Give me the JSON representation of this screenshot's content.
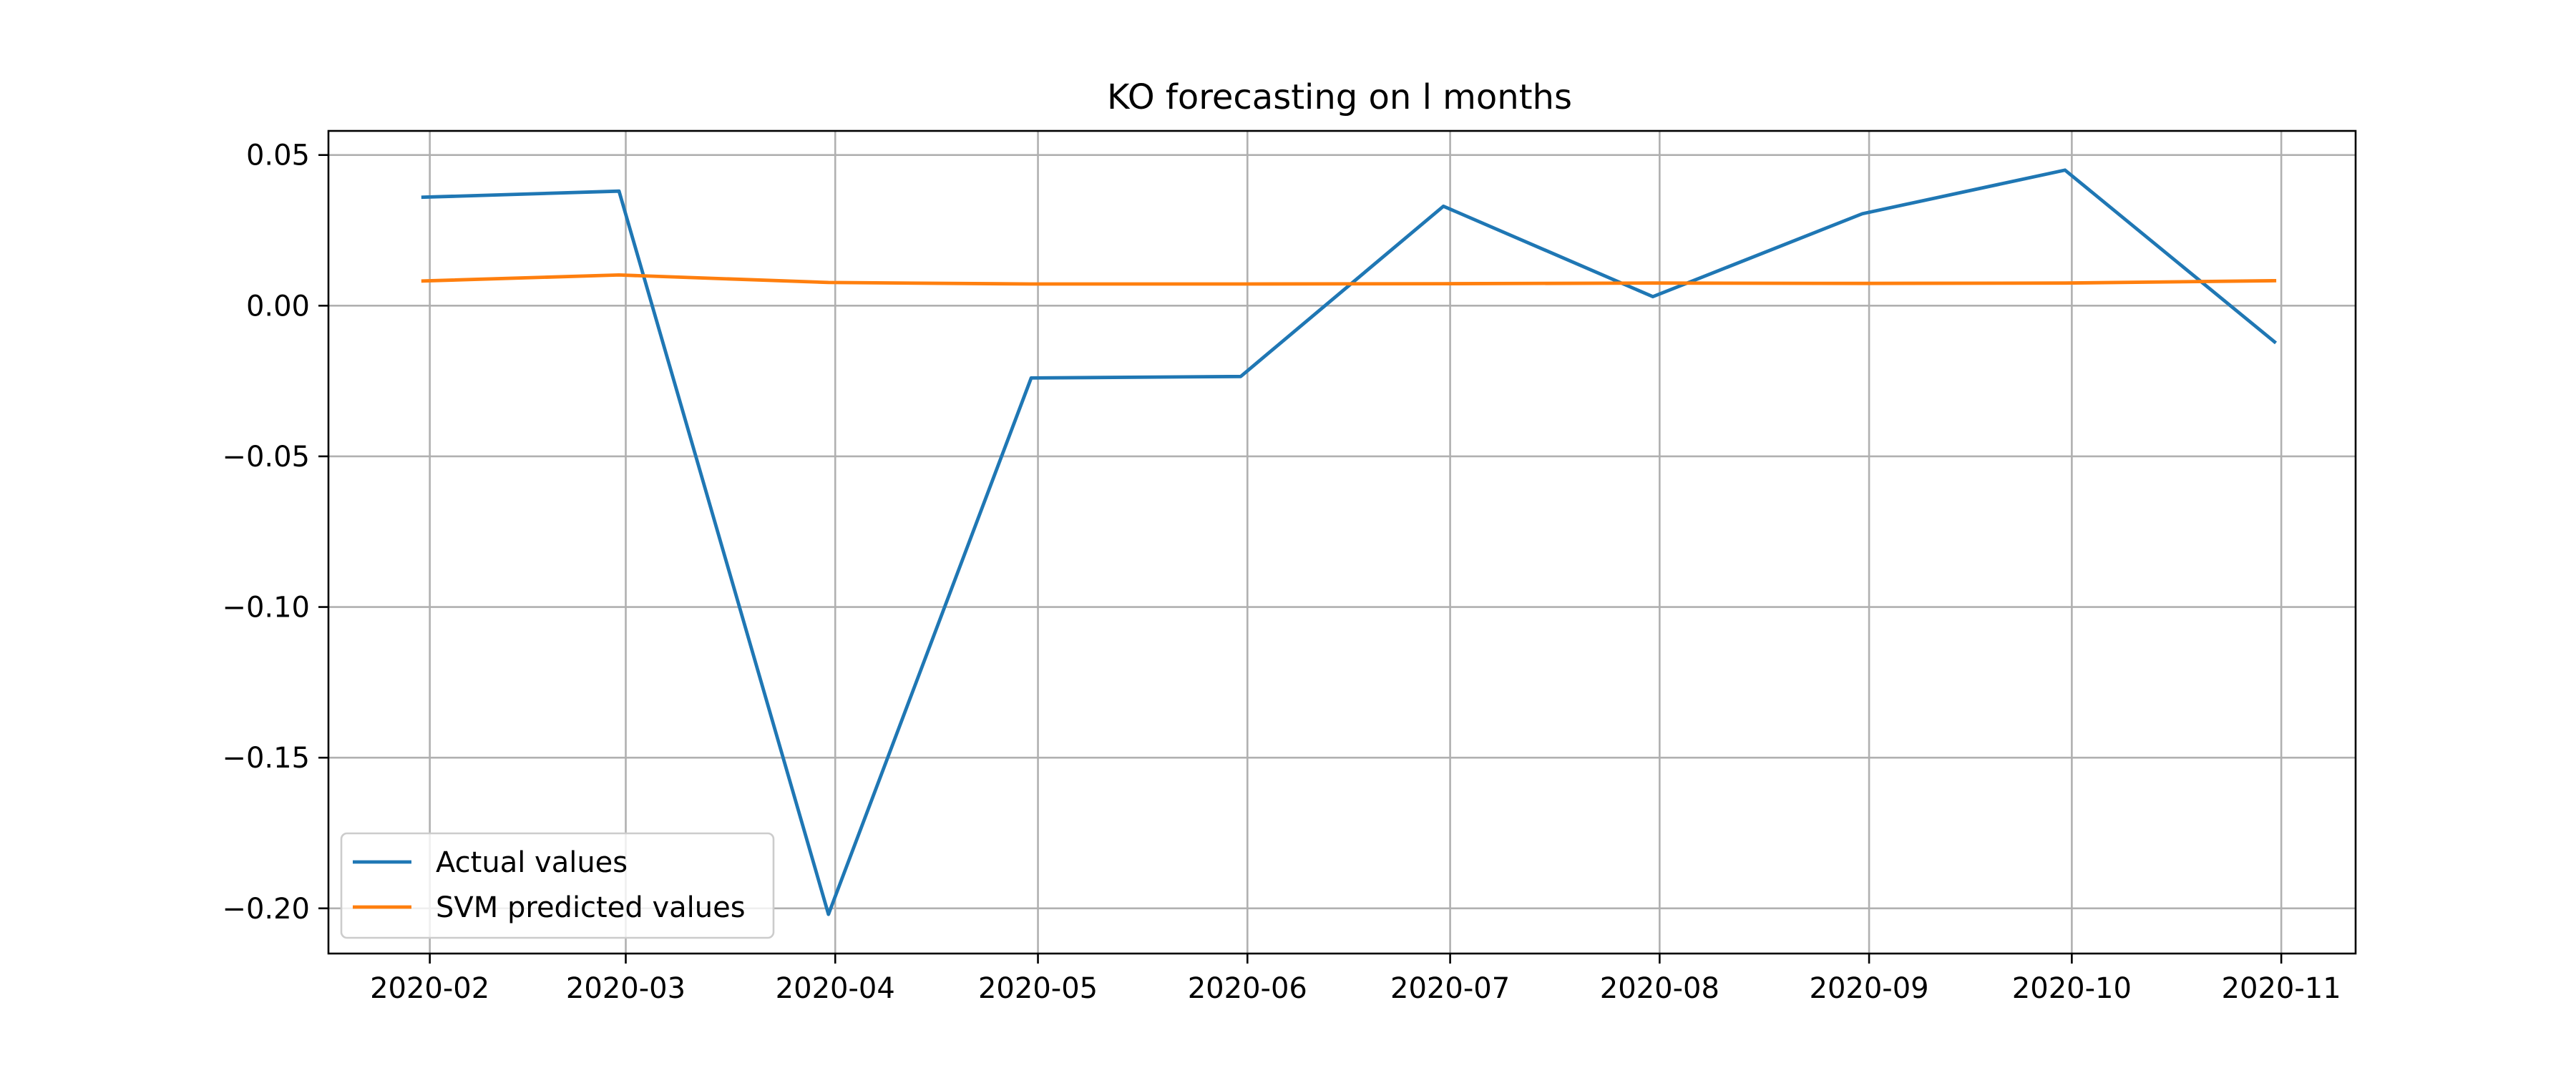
{
  "chart_data": {
    "type": "line",
    "title": "KO forecasting on l months",
    "xlabel": "",
    "ylabel": "",
    "x": [
      "2020-01-31",
      "2020-02-29",
      "2020-03-31",
      "2020-04-30",
      "2020-05-31",
      "2020-06-30",
      "2020-07-31",
      "2020-08-31",
      "2020-09-30",
      "2020-10-31"
    ],
    "x_ticks": [
      "2020-02-01",
      "2020-03-01",
      "2020-04-01",
      "2020-05-01",
      "2020-06-01",
      "2020-07-01",
      "2020-08-01",
      "2020-09-01",
      "2020-10-01",
      "2020-11-01"
    ],
    "x_tick_labels": [
      "2020-02",
      "2020-03",
      "2020-04",
      "2020-05",
      "2020-06",
      "2020-07",
      "2020-08",
      "2020-09",
      "2020-10",
      "2020-11"
    ],
    "xlim": [
      "2020-01-17",
      "2020-11-12"
    ],
    "ylim": [
      -0.215,
      0.058
    ],
    "y_ticks": [
      0.05,
      0.0,
      -0.05,
      -0.1,
      -0.15,
      -0.2
    ],
    "y_tick_labels": [
      "0.05",
      "0.00",
      "−0.05",
      "−0.10",
      "−0.15",
      "−0.20"
    ],
    "grid": true,
    "legend_position": "lower-left",
    "series": [
      {
        "name": "Actual values",
        "color": "#1f77b4",
        "values": [
          0.036,
          0.038,
          -0.202,
          -0.024,
          -0.0235,
          0.033,
          0.003,
          0.0305,
          0.045,
          -0.012
        ]
      },
      {
        "name": "SVM predicted values",
        "color": "#ff7f0e",
        "values": [
          0.0082,
          0.0102,
          0.0077,
          0.0072,
          0.0072,
          0.0073,
          0.0075,
          0.0074,
          0.0075,
          0.0083
        ]
      }
    ]
  }
}
